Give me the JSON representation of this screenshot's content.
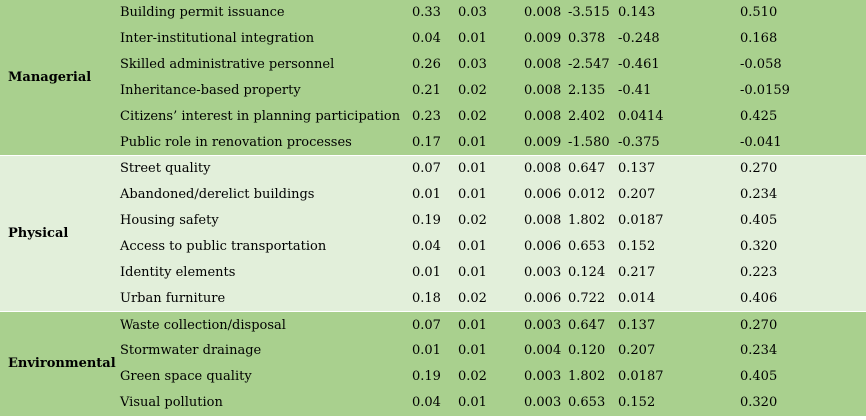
{
  "groups": [
    {
      "category": "Managerial",
      "rows": [
        {
          "indicator": "Building permit issuance",
          "c1": "0.33",
          "c2": "0.03",
          "c3": "0.008",
          "c4": "-3.515",
          "c5": "0.143",
          "c6": "0.510"
        },
        {
          "indicator": "Inter-institutional integration",
          "c1": "0.04",
          "c2": "0.01",
          "c3": "0.009",
          "c4": "0.378",
          "c5": "-0.248",
          "c6": "0.168"
        },
        {
          "indicator": "Skilled administrative personnel",
          "c1": "0.26",
          "c2": "0.03",
          "c3": "0.008",
          "c4": "-2.547",
          "c5": "-0.461",
          "c6": "-0.058"
        },
        {
          "indicator": "Inheritance-based property",
          "c1": "0.21",
          "c2": "0.02",
          "c3": "0.008",
          "c4": "2.135",
          "c5": "-0.41",
          "c6": "-0.0159"
        },
        {
          "indicator": "Citizens’ interest in planning participation",
          "c1": "0.23",
          "c2": "0.02",
          "c3": "0.008",
          "c4": "2.402",
          "c5": "0.0414",
          "c6": "0.425"
        },
        {
          "indicator": "Public role in renovation processes",
          "c1": "0.17",
          "c2": "0.01",
          "c3": "0.009",
          "c4": "-1.580",
          "c5": "-0.375",
          "c6": "-0.041"
        }
      ]
    },
    {
      "category": "Physical",
      "rows": [
        {
          "indicator": "Street quality",
          "c1": "0.07",
          "c2": "0.01",
          "c3": "0.008",
          "c4": "0.647",
          "c5": "0.137",
          "c6": "0.270"
        },
        {
          "indicator": "Abandoned/derelict buildings",
          "c1": "0.01",
          "c2": "0.01",
          "c3": "0.006",
          "c4": "0.012",
          "c5": "0.207",
          "c6": "0.234"
        },
        {
          "indicator": "Housing safety",
          "c1": "0.19",
          "c2": "0.02",
          "c3": "0.008",
          "c4": "1.802",
          "c5": "0.0187",
          "c6": "0.405"
        },
        {
          "indicator": "Access to public transportation",
          "c1": "0.04",
          "c2": "0.01",
          "c3": "0.006",
          "c4": "0.653",
          "c5": "0.152",
          "c6": "0.320"
        },
        {
          "indicator": "Identity elements",
          "c1": "0.01",
          "c2": "0.01",
          "c3": "0.003",
          "c4": "0.124",
          "c5": "0.217",
          "c6": "0.223"
        },
        {
          "indicator": "Urban furniture",
          "c1": "0.18",
          "c2": "0.02",
          "c3": "0.006",
          "c4": "0.722",
          "c5": "0.014",
          "c6": "0.406"
        }
      ]
    },
    {
      "category": "Environmental",
      "rows": [
        {
          "indicator": "Waste collection/disposal",
          "c1": "0.07",
          "c2": "0.01",
          "c3": "0.003",
          "c4": "0.647",
          "c5": "0.137",
          "c6": "0.270"
        },
        {
          "indicator": "Stormwater drainage",
          "c1": "0.01",
          "c2": "0.01",
          "c3": "0.004",
          "c4": "0.120",
          "c5": "0.207",
          "c6": "0.234"
        },
        {
          "indicator": "Green space quality",
          "c1": "0.19",
          "c2": "0.02",
          "c3": "0.003",
          "c4": "1.802",
          "c5": "0.0187",
          "c6": "0.405"
        },
        {
          "indicator": "Visual pollution",
          "c1": "0.04",
          "c2": "0.01",
          "c3": "0.003",
          "c4": "0.653",
          "c5": "0.152",
          "c6": "0.320"
        }
      ]
    }
  ],
  "colors": {
    "dark_band": "#a9d08e",
    "light_band": "#e2efda"
  }
}
